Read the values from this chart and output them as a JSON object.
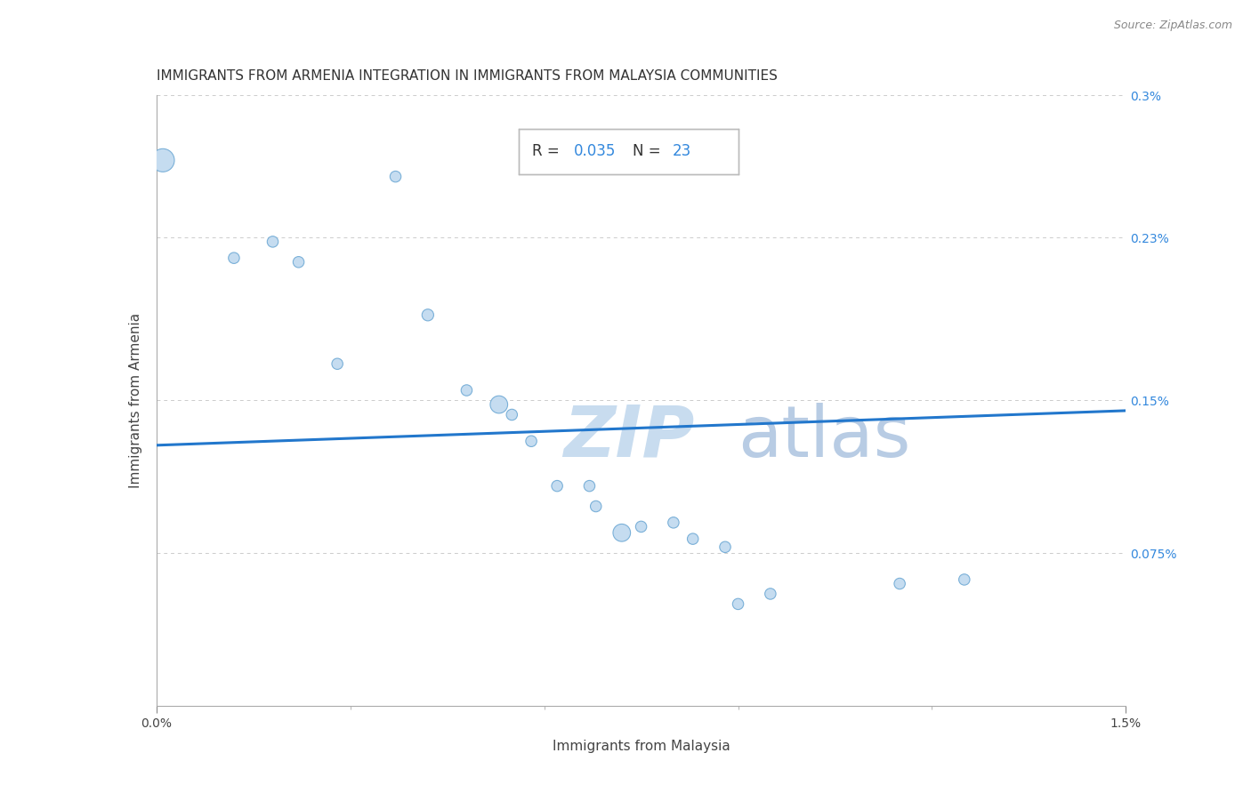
{
  "title": "IMMIGRANTS FROM ARMENIA INTEGRATION IN IMMIGRANTS FROM MALAYSIA COMMUNITIES",
  "source": "Source: ZipAtlas.com",
  "xlabel": "Immigrants from Malaysia",
  "ylabel": "Immigrants from Armenia",
  "R": 0.035,
  "N": 23,
  "xlim": [
    0.0,
    0.015
  ],
  "ylim": [
    0.0,
    0.003
  ],
  "ytick_positions": [
    0.00075,
    0.0015,
    0.0023,
    0.003
  ],
  "ytick_labels": [
    "0.075%",
    "0.15%",
    "0.23%",
    "0.3%"
  ],
  "scatter_x": [
    0.0001,
    0.0012,
    0.0037,
    0.0022,
    0.0018,
    0.0028,
    0.0042,
    0.0048,
    0.0053,
    0.0055,
    0.0058,
    0.0062,
    0.0067,
    0.0068,
    0.0072,
    0.0075,
    0.008,
    0.0083,
    0.0088,
    0.009,
    0.0095,
    0.0115,
    0.0125
  ],
  "scatter_y": [
    0.00268,
    0.0022,
    0.0026,
    0.00218,
    0.00228,
    0.00168,
    0.00192,
    0.00155,
    0.00148,
    0.00143,
    0.0013,
    0.00108,
    0.00108,
    0.00098,
    0.00085,
    0.00088,
    0.0009,
    0.00082,
    0.00078,
    0.0005,
    0.00055,
    0.0006,
    0.00062
  ],
  "scatter_sizes": [
    350,
    80,
    80,
    80,
    80,
    80,
    90,
    80,
    200,
    80,
    80,
    80,
    80,
    80,
    200,
    80,
    80,
    80,
    80,
    80,
    80,
    80,
    80
  ],
  "dot_facecolor": "#c5dcf0",
  "dot_edgecolor": "#7ab0d8",
  "trend_color": "#2277cc",
  "trend_y0": 0.00128,
  "trend_y1": 0.00145,
  "background_color": "#ffffff",
  "grid_color": "#cccccc",
  "title_fontsize": 11,
  "label_fontsize": 11,
  "tick_fontsize": 10,
  "watermark_zip_color": "#c8dcef",
  "watermark_atlas_color": "#b8cce4"
}
